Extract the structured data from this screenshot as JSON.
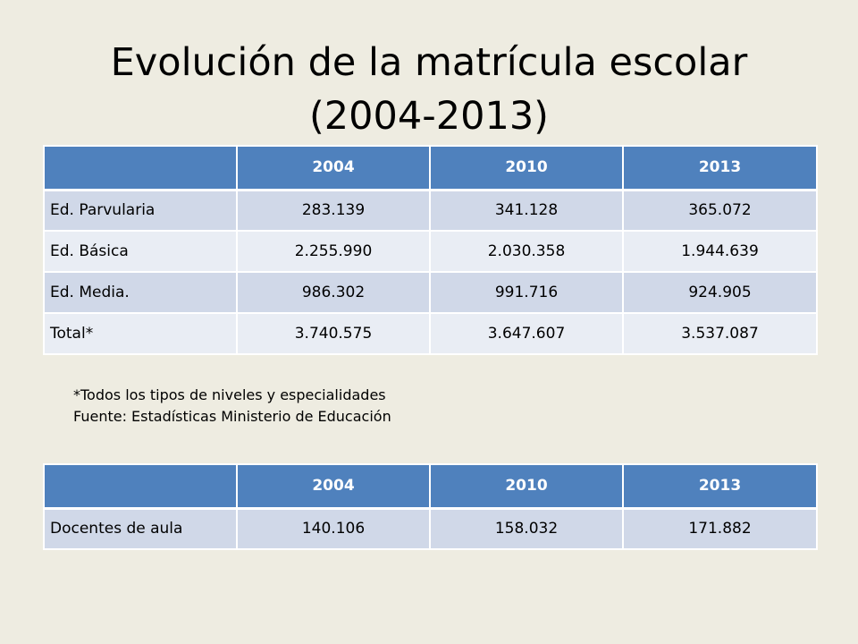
{
  "slide": {
    "title_line1": "Evolución de la matrícula escolar",
    "title_line2": "(2004-2013)"
  },
  "enrollment_table": {
    "headers": [
      "",
      "2004",
      "2010",
      "2013"
    ],
    "rows": [
      [
        "Ed. Parvularia",
        "283.139",
        "341.128",
        "365.072"
      ],
      [
        "Ed. Básica",
        "2.255.990",
        "2.030.358",
        "1.944.639"
      ],
      [
        "Ed. Media.",
        "986.302",
        "991.716",
        "924.905"
      ],
      [
        "Total*",
        "3.740.575",
        "3.647.607",
        "3.537.087"
      ]
    ]
  },
  "notes": {
    "footnote": "*Todos los tipos de niveles y especialidades",
    "source": "Fuente:  Estadísticas Ministerio de Educación"
  },
  "teachers_table": {
    "headers": [
      "",
      "2004",
      "2010",
      "2013"
    ],
    "rows": [
      [
        "Docentes de aula",
        "140.106",
        "158.032",
        "171.882"
      ]
    ]
  },
  "colors": {
    "background": "#eeece1",
    "header_fill": "#4f81bd",
    "row_band_dark": "#d0d8e8",
    "row_band_light": "#e9edf4"
  }
}
